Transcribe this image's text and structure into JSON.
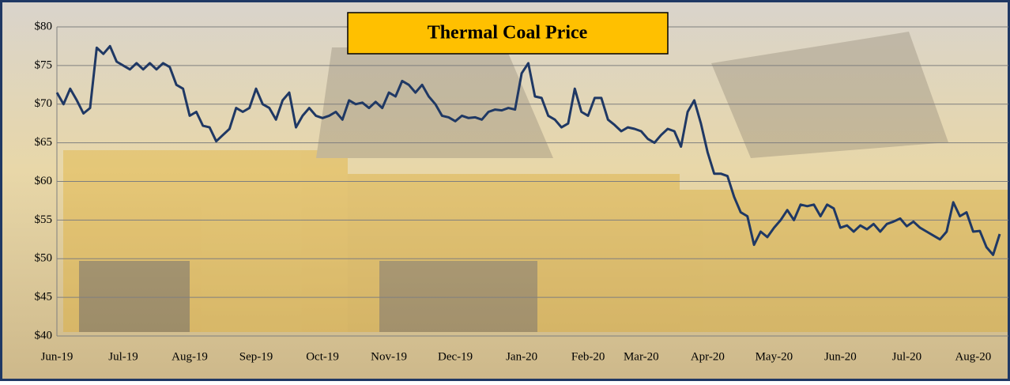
{
  "chart_data": {
    "type": "line",
    "title": "Thermal Coal Price",
    "categories": [
      "Jun-19",
      null,
      null,
      null,
      null,
      null,
      null,
      null,
      null,
      null,
      "Jul-19",
      null,
      null,
      null,
      null,
      null,
      null,
      null,
      null,
      null,
      "Aug-19",
      null,
      null,
      null,
      null,
      null,
      null,
      null,
      null,
      null,
      "Sep-19",
      null,
      null,
      null,
      null,
      null,
      null,
      null,
      null,
      null,
      "Oct-19",
      null,
      null,
      null,
      null,
      null,
      null,
      null,
      null,
      null,
      "Nov-19",
      null,
      null,
      null,
      null,
      null,
      null,
      null,
      null,
      null,
      "Dec-19",
      null,
      null,
      null,
      null,
      null,
      null,
      null,
      null,
      null,
      "Jan-20",
      null,
      null,
      null,
      null,
      null,
      null,
      null,
      null,
      null,
      "Feb-20",
      null,
      null,
      null,
      null,
      null,
      null,
      null,
      "Mar-20",
      null,
      null,
      null,
      null,
      null,
      null,
      null,
      null,
      null,
      "Apr-20",
      null,
      null,
      null,
      null,
      null,
      null,
      null,
      null,
      null,
      "May-20",
      null,
      null,
      null,
      null,
      null,
      null,
      null,
      null,
      null,
      "Jun-20",
      null,
      null,
      null,
      null,
      null,
      null,
      null,
      null,
      null,
      "Jul-20",
      null,
      null,
      null,
      null,
      null,
      null,
      null,
      null,
      null,
      "Aug-20",
      null,
      null,
      null,
      null
    ],
    "series": [
      {
        "color": "#1f3864",
        "values": [
          71.5,
          70,
          72,
          70.5,
          68.8,
          69.5,
          77.3,
          76.5,
          77.5,
          75.5,
          75,
          74.5,
          75.3,
          74.5,
          75.3,
          74.5,
          75.3,
          74.8,
          72.5,
          72,
          68.5,
          69,
          67.2,
          67,
          65.2,
          66,
          66.8,
          69.5,
          69,
          69.5,
          72,
          70,
          69.5,
          68,
          70.5,
          71.5,
          67,
          68.5,
          69.5,
          68.5,
          68.2,
          68.5,
          69,
          68,
          70.5,
          70,
          70.2,
          69.5,
          70.3,
          69.5,
          71.5,
          71,
          73,
          72.5,
          71.5,
          72.5,
          71,
          70,
          68.5,
          68.3,
          67.8,
          68.5,
          68.2,
          68.3,
          68,
          69,
          69.3,
          69.2,
          69.5,
          69.3,
          74,
          75.3,
          71,
          70.8,
          68.5,
          68,
          67,
          67.5,
          72,
          69,
          68.5,
          70.8,
          70.8,
          68,
          67.3,
          66.5,
          67,
          66.8,
          66.5,
          65.5,
          65,
          66,
          66.8,
          66.5,
          64.5,
          69,
          70.5,
          67.5,
          63.8,
          61,
          61,
          60.7,
          58,
          56,
          55.5,
          51.8,
          53.5,
          52.8,
          54,
          55,
          56.3,
          55,
          57,
          56.8,
          57,
          55.5,
          57,
          56.5,
          54,
          54.3,
          53.5,
          54.3,
          53.8,
          54.5,
          53.5,
          54.5,
          54.8,
          55.2,
          54.2,
          54.8,
          54,
          53.5,
          53,
          52.5,
          53.5,
          57.3,
          55.5,
          56,
          53.5,
          53.6,
          51.5,
          50.5,
          53.2
        ]
      }
    ],
    "ylim": [
      40,
      80
    ],
    "yticks": [
      {
        "value": 40,
        "label": "$40"
      },
      {
        "value": 45,
        "label": "$45"
      },
      {
        "value": 50,
        "label": "$50"
      },
      {
        "value": 55,
        "label": "$55"
      },
      {
        "value": 60,
        "label": "$60"
      },
      {
        "value": 65,
        "label": "$65"
      },
      {
        "value": 70,
        "label": "$70"
      },
      {
        "value": 75,
        "label": "$75"
      },
      {
        "value": 80,
        "label": "$80"
      }
    ],
    "grid": true
  }
}
